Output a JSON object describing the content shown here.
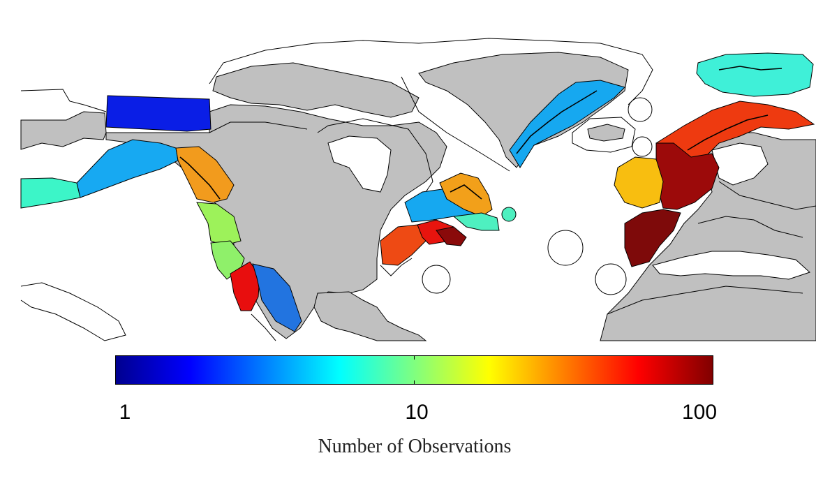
{
  "map": {
    "colorbar": {
      "scale": "log",
      "range": [
        1,
        100
      ],
      "ticks": [
        {
          "value": 1,
          "label": "1"
        },
        {
          "value": 10,
          "label": "10"
        },
        {
          "value": 100,
          "label": "100"
        }
      ],
      "title": "Number of Observations",
      "colormap": "jet"
    },
    "colors": {
      "land": "#c0c0c0",
      "ocean": "#ffffff",
      "outline": "#000000"
    },
    "regions": [
      {
        "name": "alaska-bering",
        "value": 1.5,
        "color": "#0a1ee6"
      },
      {
        "name": "alaska-west",
        "value": 8,
        "color": "#3cf5c8"
      },
      {
        "name": "gulf-of-alaska",
        "value": 3.5,
        "color": "#17a9f2"
      },
      {
        "name": "british-columbia",
        "value": 22,
        "color": "#f29b1d"
      },
      {
        "name": "oregon-washington",
        "value": 12,
        "color": "#9df25a"
      },
      {
        "name": "california-north",
        "value": 12,
        "color": "#8ff06a"
      },
      {
        "name": "california-coast",
        "value": 55,
        "color": "#e80e0e"
      },
      {
        "name": "california-offshore",
        "value": 2.5,
        "color": "#2274e0"
      },
      {
        "name": "greenland-east",
        "value": 3.5,
        "color": "#16a8f0"
      },
      {
        "name": "gulf-of-st-lawrence",
        "value": 3.5,
        "color": "#16a8f0"
      },
      {
        "name": "newfoundland",
        "value": 25,
        "color": "#f2a01a"
      },
      {
        "name": "nova-scotia",
        "value": 8,
        "color": "#4ef0c0"
      },
      {
        "name": "gulf-of-maine",
        "value": 40,
        "color": "#ee4a14"
      },
      {
        "name": "new-england",
        "value": 55,
        "color": "#e8140e"
      },
      {
        "name": "mid-atlantic",
        "value": 100,
        "color": "#8a0a0a"
      },
      {
        "name": "norway-svalbard",
        "value": 7,
        "color": "#3ff0d8"
      },
      {
        "name": "norwegian-coast",
        "value": 45,
        "color": "#ee3a10"
      },
      {
        "name": "north-sea",
        "value": 90,
        "color": "#9c0a0a"
      },
      {
        "name": "british-isles",
        "value": 20,
        "color": "#f8be10"
      },
      {
        "name": "iberia-biscay",
        "value": 100,
        "color": "#7e0a0a"
      }
    ]
  }
}
